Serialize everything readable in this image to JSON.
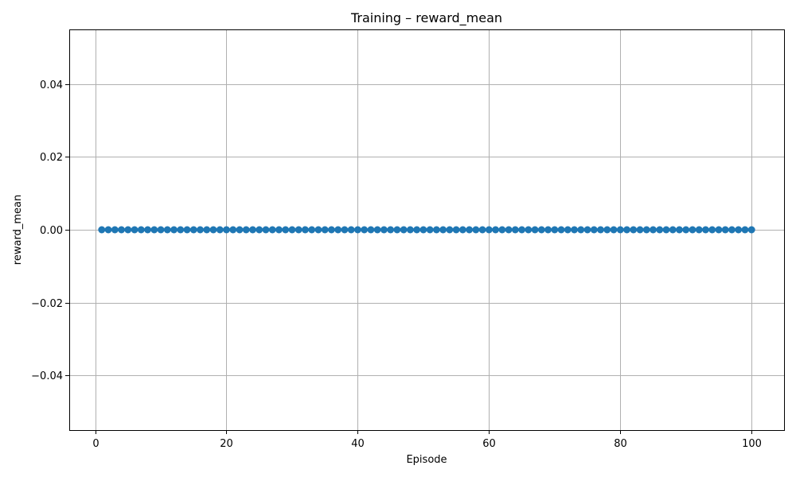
{
  "chart_data": {
    "type": "line",
    "title": "Training – reward_mean",
    "xlabel": "Episode",
    "ylabel": "reward_mean",
    "xlim": [
      -3.95,
      104.95
    ],
    "ylim": [
      -0.055,
      0.055
    ],
    "x_ticks": [
      0,
      20,
      40,
      60,
      80,
      100
    ],
    "x_tick_labels": [
      "0",
      "20",
      "40",
      "60",
      "80",
      "100"
    ],
    "y_ticks": [
      -0.04,
      -0.02,
      0.0,
      0.02,
      0.04
    ],
    "y_tick_labels": [
      "−0.04",
      "−0.02",
      "0.00",
      "0.02",
      "0.04"
    ],
    "grid": true,
    "series": [
      {
        "color": "#1f77b4",
        "marker": "circle",
        "x": [
          1,
          2,
          3,
          4,
          5,
          6,
          7,
          8,
          9,
          10,
          11,
          12,
          13,
          14,
          15,
          16,
          17,
          18,
          19,
          20,
          21,
          22,
          23,
          24,
          25,
          26,
          27,
          28,
          29,
          30,
          31,
          32,
          33,
          34,
          35,
          36,
          37,
          38,
          39,
          40,
          41,
          42,
          43,
          44,
          45,
          46,
          47,
          48,
          49,
          50,
          51,
          52,
          53,
          54,
          55,
          56,
          57,
          58,
          59,
          60,
          61,
          62,
          63,
          64,
          65,
          66,
          67,
          68,
          69,
          70,
          71,
          72,
          73,
          74,
          75,
          76,
          77,
          78,
          79,
          80,
          81,
          82,
          83,
          84,
          85,
          86,
          87,
          88,
          89,
          90,
          91,
          92,
          93,
          94,
          95,
          96,
          97,
          98,
          99,
          100
        ],
        "y": [
          0,
          0,
          0,
          0,
          0,
          0,
          0,
          0,
          0,
          0,
          0,
          0,
          0,
          0,
          0,
          0,
          0,
          0,
          0,
          0,
          0,
          0,
          0,
          0,
          0,
          0,
          0,
          0,
          0,
          0,
          0,
          0,
          0,
          0,
          0,
          0,
          0,
          0,
          0,
          0,
          0,
          0,
          0,
          0,
          0,
          0,
          0,
          0,
          0,
          0,
          0,
          0,
          0,
          0,
          0,
          0,
          0,
          0,
          0,
          0,
          0,
          0,
          0,
          0,
          0,
          0,
          0,
          0,
          0,
          0,
          0,
          0,
          0,
          0,
          0,
          0,
          0,
          0,
          0,
          0,
          0,
          0,
          0,
          0,
          0,
          0,
          0,
          0,
          0,
          0,
          0,
          0,
          0,
          0,
          0,
          0,
          0,
          0,
          0,
          0
        ]
      }
    ]
  }
}
